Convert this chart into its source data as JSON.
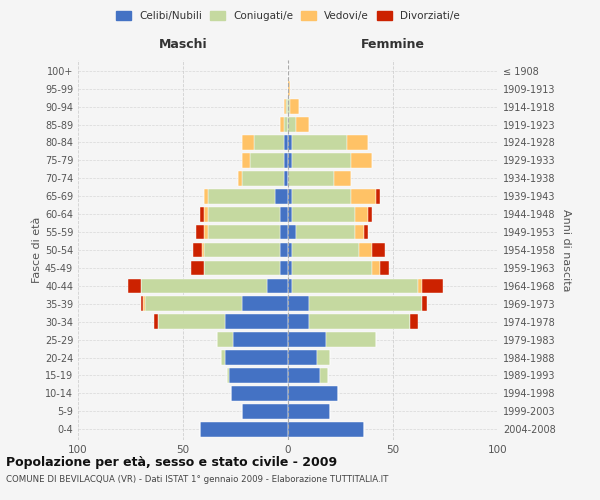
{
  "age_groups": [
    "0-4",
    "5-9",
    "10-14",
    "15-19",
    "20-24",
    "25-29",
    "30-34",
    "35-39",
    "40-44",
    "45-49",
    "50-54",
    "55-59",
    "60-64",
    "65-69",
    "70-74",
    "75-79",
    "80-84",
    "85-89",
    "90-94",
    "95-99",
    "100+"
  ],
  "birth_years": [
    "2004-2008",
    "1999-2003",
    "1994-1998",
    "1989-1993",
    "1984-1988",
    "1979-1983",
    "1974-1978",
    "1969-1973",
    "1964-1968",
    "1959-1963",
    "1954-1958",
    "1949-1953",
    "1944-1948",
    "1939-1943",
    "1934-1938",
    "1929-1933",
    "1924-1928",
    "1919-1923",
    "1914-1918",
    "1909-1913",
    "≤ 1908"
  ],
  "maschi": {
    "celibi": [
      42,
      22,
      27,
      28,
      30,
      26,
      30,
      22,
      10,
      4,
      4,
      4,
      4,
      6,
      2,
      2,
      2,
      0,
      0,
      0,
      0
    ],
    "coniugati": [
      0,
      0,
      0,
      1,
      2,
      8,
      32,
      46,
      60,
      36,
      36,
      34,
      34,
      32,
      20,
      16,
      14,
      2,
      1,
      0,
      0
    ],
    "vedovi": [
      0,
      0,
      0,
      0,
      0,
      0,
      0,
      1,
      0,
      0,
      1,
      2,
      2,
      2,
      2,
      4,
      6,
      2,
      1,
      0,
      0
    ],
    "divorziati": [
      0,
      0,
      0,
      0,
      0,
      0,
      2,
      1,
      6,
      6,
      4,
      4,
      2,
      0,
      0,
      0,
      0,
      0,
      0,
      0,
      0
    ]
  },
  "femmine": {
    "nubili": [
      36,
      20,
      24,
      15,
      14,
      18,
      10,
      10,
      2,
      2,
      2,
      4,
      2,
      2,
      0,
      2,
      2,
      0,
      0,
      0,
      0
    ],
    "coniugate": [
      0,
      0,
      0,
      4,
      6,
      24,
      48,
      54,
      60,
      38,
      32,
      28,
      30,
      28,
      22,
      28,
      26,
      4,
      1,
      0,
      0
    ],
    "vedove": [
      0,
      0,
      0,
      0,
      0,
      0,
      0,
      0,
      2,
      4,
      6,
      4,
      6,
      12,
      8,
      10,
      10,
      6,
      4,
      1,
      0
    ],
    "divorziate": [
      0,
      0,
      0,
      0,
      0,
      0,
      4,
      2,
      10,
      4,
      6,
      2,
      2,
      2,
      0,
      0,
      0,
      0,
      0,
      0,
      0
    ]
  },
  "colors": {
    "celibi": "#4472C4",
    "coniugati": "#c5d9a0",
    "vedovi": "#ffc266",
    "divorziati": "#cc2200"
  },
  "title": "Popolazione per età, sesso e stato civile - 2009",
  "subtitle": "COMUNE DI BEVILACQUA (VR) - Dati ISTAT 1° gennaio 2009 - Elaborazione TUTTITALIA.IT",
  "ylabel_left": "Fasce di età",
  "ylabel_right": "Anni di nascita",
  "xlabel_left": "Maschi",
  "xlabel_right": "Femmine",
  "xlim": 100,
  "background_color": "#f5f5f5",
  "grid_color": "#cccccc"
}
